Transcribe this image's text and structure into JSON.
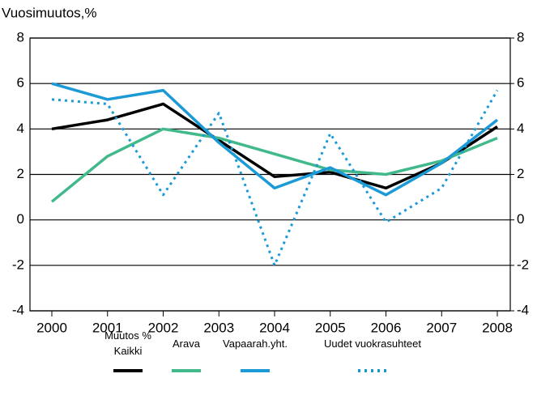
{
  "chart_data": {
    "type": "line",
    "y_axis_label": "Vuosimuutos,%",
    "x": [
      "2000",
      "2001",
      "2002",
      "2003",
      "2004",
      "2005",
      "2006",
      "2007",
      "2008"
    ],
    "ylim": [
      -4,
      8
    ],
    "yticks": [
      -4,
      -2,
      0,
      2,
      4,
      6,
      8
    ],
    "y2lim": [
      -4,
      8
    ],
    "y2ticks": [
      -4,
      -2,
      0,
      2,
      4,
      6,
      8
    ],
    "grid": true,
    "legend": "bottom",
    "series": [
      {
        "name": "Muutos %\nKaikki",
        "color": "#000000",
        "dash": "solid",
        "values": [
          4.0,
          4.4,
          5.1,
          3.5,
          1.9,
          2.1,
          1.4,
          2.5,
          4.1
        ]
      },
      {
        "name": "Arava",
        "color": "#41b98b",
        "dash": "solid",
        "values": [
          0.8,
          2.8,
          4.0,
          3.6,
          2.9,
          2.2,
          2.0,
          2.6,
          3.6
        ]
      },
      {
        "name": "Vapaarah.yht.",
        "color": "#1b9ad6",
        "dash": "solid",
        "values": [
          6.0,
          5.3,
          5.7,
          3.4,
          1.4,
          2.3,
          1.1,
          2.5,
          4.4
        ]
      },
      {
        "name": "Uudet vuokrasuhteet",
        "color": "#1b9ad6",
        "dash": "dotted",
        "values": [
          5.3,
          5.1,
          1.1,
          4.7,
          -2.0,
          3.8,
          -0.1,
          1.4,
          5.7
        ]
      }
    ]
  }
}
